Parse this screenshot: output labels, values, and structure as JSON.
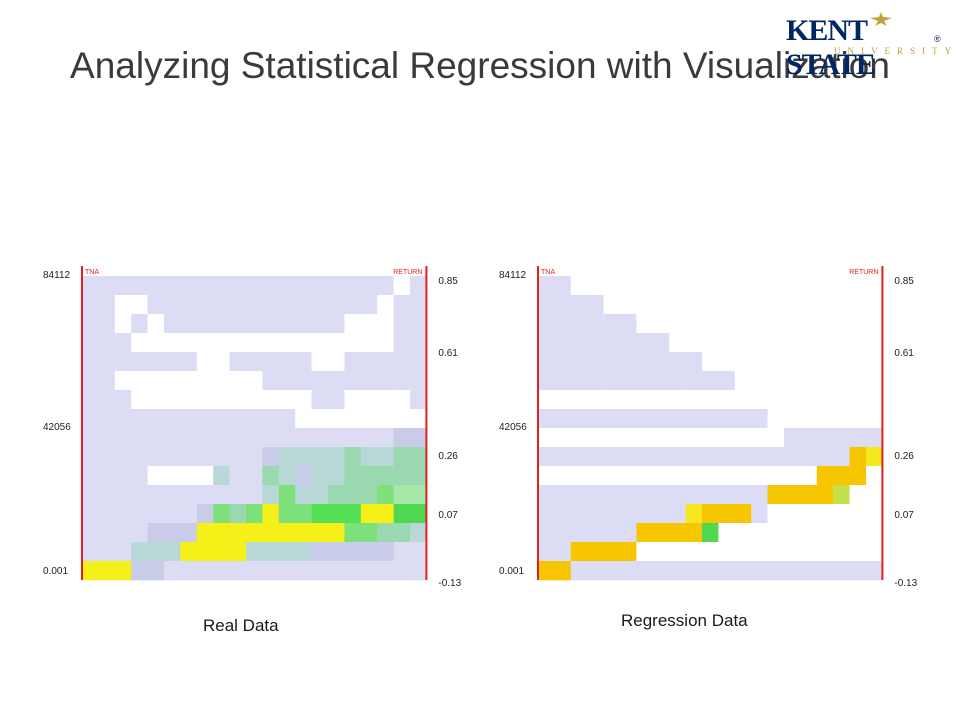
{
  "slide": {
    "title": "Analyzing Statistical Regression with Visualization",
    "logo": {
      "main": "KENT STATE",
      "sub": "UNIVERSITY",
      "reg": "®"
    }
  },
  "colors": {
    "empty": "#dcdcf5",
    "blank": "#ffffff",
    "axis_red": "#e02020",
    "low": "#9ad8b0",
    "mid": "#55e055",
    "high": "#f5f018",
    "regression": "#f6c600"
  },
  "chart_data": [
    {
      "type": "heatmap",
      "caption": "Real Data",
      "left_axis_name": "TNA",
      "right_axis_name": "RETURN",
      "left_ticks": [
        "84112",
        "42056",
        "0.001"
      ],
      "right_ticks": [
        "0.85",
        "0.61",
        "0.26",
        "0.07",
        "-0.13"
      ],
      "grid": [
        "...................w.",
        "..ww..............w..",
        "..w.w...........www..",
        "...wwwwwwwwwwwwwwww..",
        ".......ww.....ww.....",
        "..wwwwwwwww..........",
        "...wwwwwwwwwww..wwww.",
        ".............wwwwwwww",
        "...................aa",
        "...........abbbbcbbcc",
        "....wwwwb..cbabbccccc",
        "...........bdbbcccdhh",
        ".......adcdeddfffeegg",
        "....aaaeeeeeeeeeddccb",
        "...bbbeeeebbbbaaaaa..",
        "eeeaa................"
      ]
    },
    {
      "type": "heatmap",
      "caption": "Regression Data",
      "left_axis_name": "TNA",
      "right_axis_name": "RETURN",
      "left_ticks": [
        "84112",
        "42056",
        "0.001"
      ],
      "right_ticks": [
        "0.85",
        "0.61",
        "0.26",
        "0.07",
        "-0.13"
      ],
      "grid": [
        "..wwwwwwwwwwwwwwwwwww",
        "....wwwwwwwwwwwwwwwww",
        "......wwwwwwwwwwwwwww",
        "........wwwwwwwwwwwww",
        "..........wwwwwwwwwww",
        "............wwwwwwwww",
        "wwwwwwwwwwwwwwwwwwwww",
        "..............wwwwwww",
        "wwwwwwwwwwwwwww......",
        "...................ry",
        "wwwwwwwwwwwwwwwwwrrrw",
        "..............rrrrnww",
        ".........yrrr.wwwwwww",
        "......rrrrgwwwwwwwwww",
        "..rrrrwwwwwwwwwwwwwww",
        "rr..................."
      ]
    }
  ]
}
